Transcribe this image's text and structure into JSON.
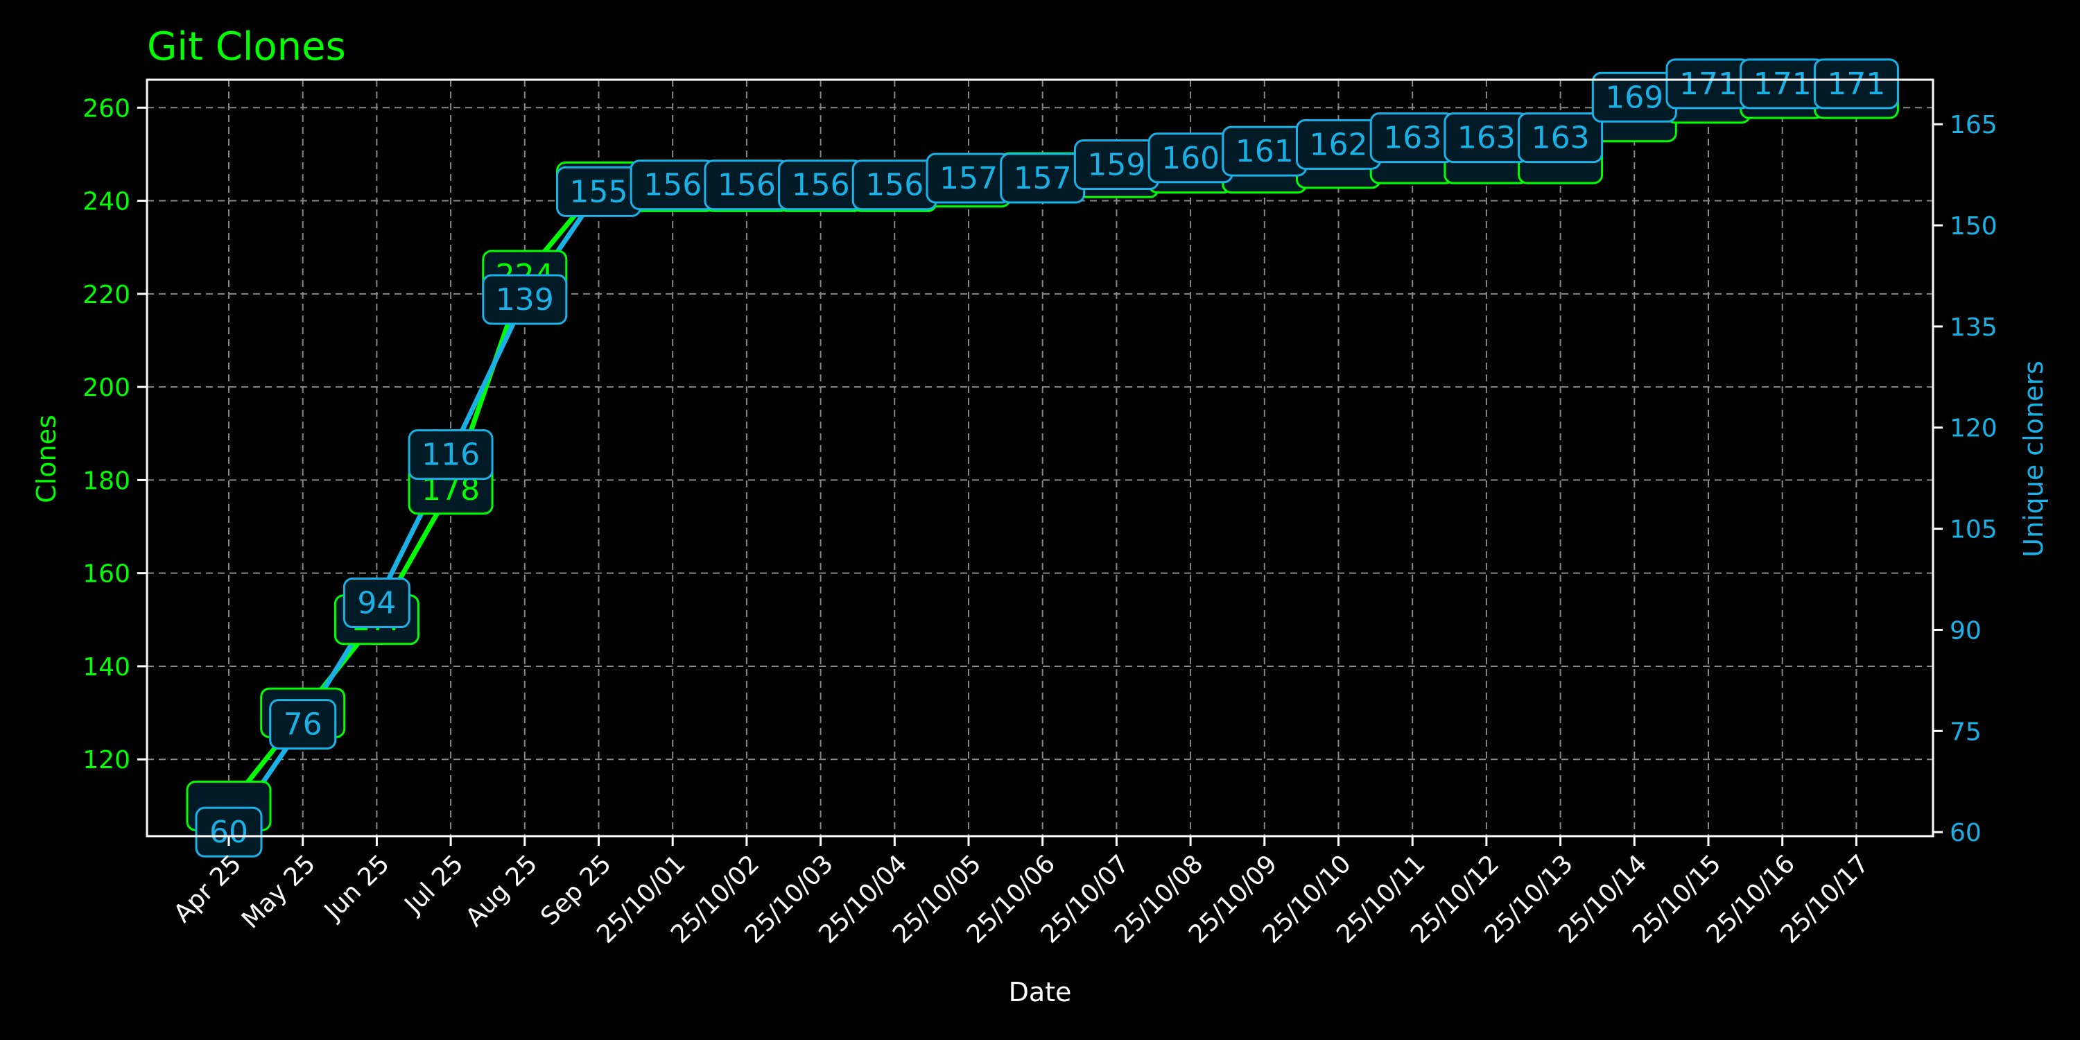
{
  "chart_data": {
    "type": "line",
    "title": "Git Clones",
    "xlabel": "Date",
    "ylabel_left": "Clones",
    "ylabel_right": "Unique cloners",
    "categories": [
      "Apr 25",
      "May 25",
      "Jun 25",
      "Jul 25",
      "Aug 25",
      "Sep 25",
      "25/10/01",
      "25/10/02",
      "25/10/03",
      "25/10/04",
      "25/10/05",
      "25/10/06",
      "25/10/07",
      "25/10/08",
      "25/10/09",
      "25/10/10",
      "25/10/11",
      "25/10/12",
      "25/10/13",
      "25/10/14",
      "25/10/15",
      "25/10/16",
      "25/10/17"
    ],
    "series": [
      {
        "name": "Clones",
        "axis": "left",
        "color": "#00ff00",
        "values": [
          110,
          130,
          150,
          178,
          224,
          243,
          243,
          243,
          243,
          243,
          244,
          245,
          246,
          247,
          247,
          248,
          249,
          249,
          249,
          258,
          262,
          263,
          263
        ],
        "labels": [
          "",
          "",
          "1??",
          "178",
          "224",
          "",
          "",
          "",
          "",
          "",
          "",
          "",
          "",
          "",
          "",
          "",
          "",
          "",
          "",
          "",
          "",
          "",
          ""
        ]
      },
      {
        "name": "Unique cloners",
        "axis": "right",
        "color": "#1ab2e6",
        "values": [
          60,
          76,
          94,
          116,
          139,
          155,
          156,
          156,
          156,
          156,
          157,
          157,
          159,
          160,
          161,
          162,
          163,
          163,
          163,
          169,
          171,
          171,
          171
        ],
        "labels": [
          "60",
          "76",
          "94",
          "116",
          "139",
          "155",
          "156",
          "156",
          "156",
          "156",
          "157",
          "157",
          "159",
          "160",
          "161",
          "162",
          "163",
          "163",
          "163",
          "169",
          "171",
          "171",
          "171"
        ]
      }
    ],
    "y_left": {
      "range": [
        103.5,
        266
      ],
      "ticks": [
        120,
        140,
        160,
        180,
        200,
        220,
        240,
        260
      ]
    },
    "y_right": {
      "range": [
        59.4,
        171.6
      ],
      "ticks": [
        60,
        75,
        90,
        105,
        120,
        135,
        150,
        165
      ]
    },
    "grid": true,
    "legend": "none",
    "colors": {
      "background": "#000000",
      "left_axis": "#00ff00",
      "right_axis": "#1ab2e6",
      "frame": "#ffffff",
      "grid": "#888888",
      "label_box_fill": "#001a26"
    }
  }
}
